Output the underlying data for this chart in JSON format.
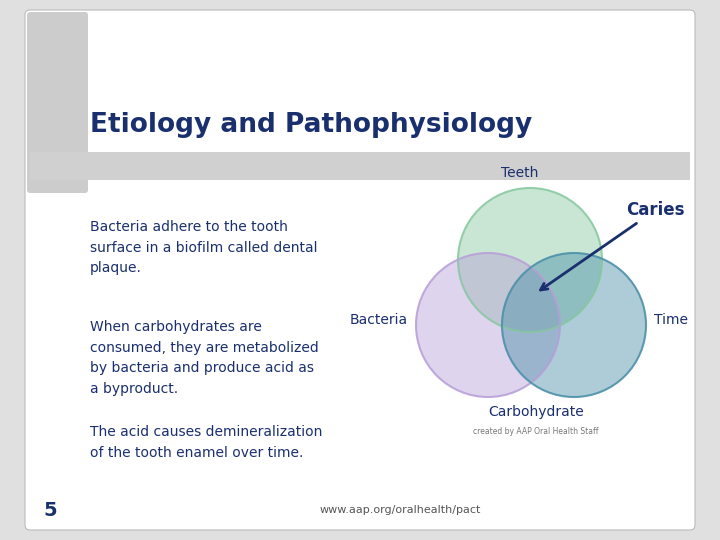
{
  "bg_color": "#e0e0e0",
  "slide_bg": "#ffffff",
  "title": "Etiology and Pathophysiology",
  "title_color": "#1a2f6e",
  "title_bar_color": "#d0d0d0",
  "left_strip_color": "#cccccc",
  "text_color": "#1a2f6e",
  "body_texts": [
    "Bacteria adhere to the tooth\nsurface in a biofilm called dental\nplaque.",
    "When carbohydrates are\nconsumed, they are metabolized\nby bacteria and produce acid as\na byproduct.",
    "The acid causes demineralization\nof the tooth enamel over time."
  ],
  "bacteria_label": "Bacteria",
  "circle_teeth_color": "#88c9a0",
  "circle_bacteria_color": "#b8a0d8",
  "circle_carb_color": "#4a8fa8",
  "circle_alpha": 0.45,
  "teeth_label": "Teeth",
  "time_label": "Time",
  "carbohydrate_label": "Carbohydrate",
  "caries_label": "Caries",
  "footer_text": "www.aap.org/oralhealth/pact",
  "credit_text": "created by AAP Oral Health Staff",
  "page_number": "5"
}
